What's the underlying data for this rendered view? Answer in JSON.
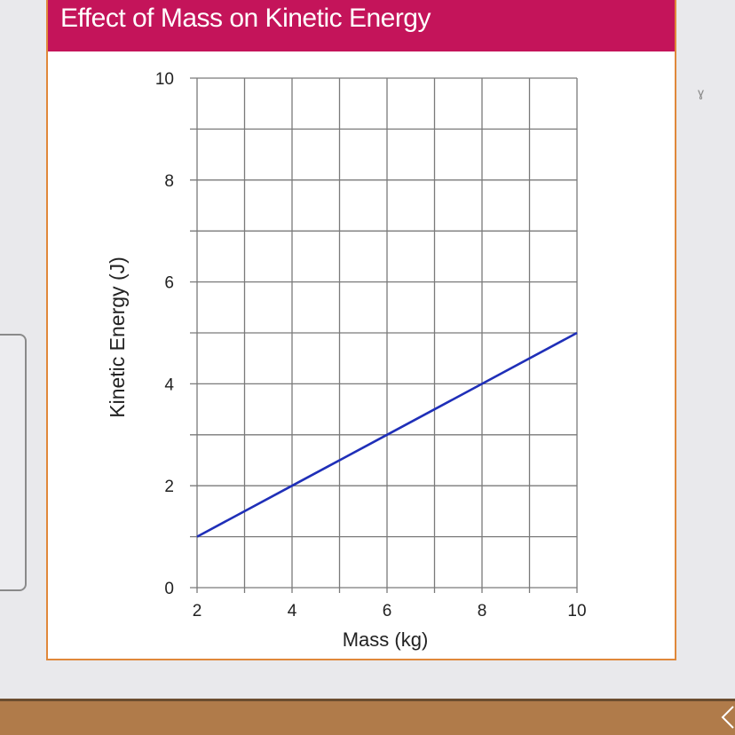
{
  "chart_data": {
    "type": "line",
    "title": "Effect of Mass on Kinetic Energy",
    "xlabel": "Mass (kg)",
    "ylabel": "Kinetic Energy (J)",
    "xlim": [
      2,
      10
    ],
    "ylim": [
      0,
      10
    ],
    "xticks": [
      "2",
      "4",
      "6",
      "8",
      "10"
    ],
    "yticks": [
      "0",
      "2",
      "4",
      "6",
      "8",
      "10"
    ],
    "grid": true,
    "series": [
      {
        "x": [
          2,
          4,
          6,
          8,
          10
        ],
        "y": [
          1,
          2,
          3,
          4,
          5
        ],
        "color": "#1f2fb8"
      }
    ]
  },
  "colors": {
    "title_bar": "#c4145a",
    "card_border": "#e0883a",
    "grid": "#7a7a7a",
    "line": "#1f2fb8"
  }
}
